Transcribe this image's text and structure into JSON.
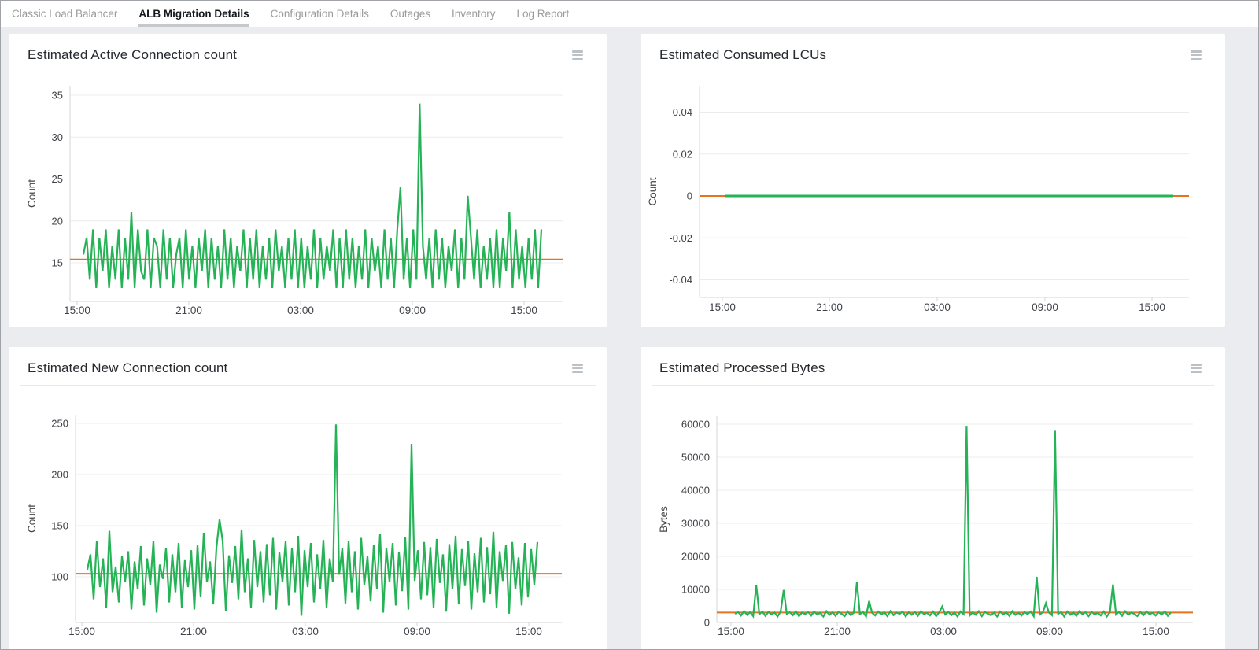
{
  "tab_bar": {
    "tabs": [
      {
        "label": "Classic Load Balancer",
        "active": false
      },
      {
        "label": "ALB Migration Details",
        "active": true
      },
      {
        "label": "Configuration Details",
        "active": false
      },
      {
        "label": "Outages",
        "active": false
      },
      {
        "label": "Inventory",
        "active": false
      },
      {
        "label": "Log Report",
        "active": false
      }
    ]
  },
  "icons": {
    "panel_menu": "hamburger-menu-icon"
  },
  "colors": {
    "series_green": "#26b357",
    "average_orange": "#e8731f",
    "grid": "#ececec",
    "axis": "#d5d5d5",
    "tick_text": "#3f4247",
    "page_background": "#eaecef",
    "tab_active_underline": "#c5c9cc"
  },
  "chart_data": [
    {
      "type": "line",
      "title": "Estimated Active Connection count",
      "ylabel": "Count",
      "xlabel": "",
      "grid": true,
      "legend": "none",
      "x_ticks": [
        "15:00",
        "21:00",
        "03:00",
        "09:00",
        "15:00"
      ],
      "y_ticks": [
        {
          "v": 15,
          "label": "15"
        },
        {
          "v": 20,
          "label": "20"
        },
        {
          "v": 25,
          "label": "25"
        },
        {
          "v": 30,
          "label": "30"
        },
        {
          "v": 35,
          "label": "35"
        }
      ],
      "ylim": [
        10.5,
        36
      ],
      "average_line": {
        "value": 15.4,
        "color": "#e8731f"
      },
      "series": [
        {
          "name": "Active Connection count",
          "color": "#26b357",
          "values": [
            16,
            18,
            13,
            19,
            12,
            18,
            14,
            19,
            12,
            17,
            13,
            19,
            12,
            18,
            13,
            21,
            12,
            19,
            14,
            13,
            19,
            12,
            18,
            17,
            12,
            19,
            13,
            18,
            12,
            16,
            18,
            12,
            19,
            13,
            17,
            12,
            18,
            14,
            19,
            12,
            18,
            13,
            17,
            12,
            19,
            13,
            18,
            12,
            17,
            14,
            19,
            12,
            18,
            13,
            19,
            12,
            17,
            13,
            18,
            12,
            19,
            14,
            17,
            12,
            18,
            13,
            19,
            12,
            18,
            12,
            17,
            13,
            19,
            12,
            18,
            13,
            17,
            14,
            19,
            12,
            18,
            12,
            19,
            13,
            18,
            12,
            17,
            13,
            19,
            12,
            18,
            14,
            17,
            12,
            19,
            13,
            18,
            12,
            19,
            24,
            13,
            18,
            12,
            19,
            13,
            34,
            17,
            13,
            18,
            12,
            19,
            13,
            18,
            12,
            17,
            14,
            19,
            12,
            18,
            13,
            23,
            18,
            13,
            19,
            12,
            17,
            13,
            18,
            12,
            19,
            12,
            18,
            14,
            21,
            12,
            19,
            13,
            17,
            12,
            18,
            13,
            19,
            12,
            19
          ]
        }
      ]
    },
    {
      "type": "line",
      "title": "Estimated Consumed LCUs",
      "ylabel": "Count",
      "xlabel": "",
      "grid": true,
      "legend": "none",
      "x_ticks": [
        "15:00",
        "21:00",
        "03:00",
        "09:00",
        "15:00"
      ],
      "y_ticks": [
        {
          "v": -0.04,
          "label": "-0.04"
        },
        {
          "v": -0.02,
          "label": "-0.02"
        },
        {
          "v": 0,
          "label": "0"
        },
        {
          "v": 0.02,
          "label": "0.02"
        },
        {
          "v": 0.04,
          "label": "0.04"
        }
      ],
      "ylim": [
        -0.05,
        0.05
      ],
      "average_line": {
        "value": 0,
        "color": "#e8731f"
      },
      "series": [
        {
          "name": "Consumed LCUs",
          "color": "#26b357",
          "values": [
            0,
            0,
            0,
            0,
            0,
            0,
            0,
            0,
            0,
            0,
            0,
            0
          ]
        }
      ]
    },
    {
      "type": "line",
      "title": "Estimated New Connection count",
      "ylabel": "Count",
      "xlabel": "",
      "grid": true,
      "legend": "none",
      "x_ticks": [
        "15:00",
        "21:00",
        "03:00",
        "09:00",
        "15:00"
      ],
      "y_ticks": [
        {
          "v": 100,
          "label": "100"
        },
        {
          "v": 150,
          "label": "150"
        },
        {
          "v": 200,
          "label": "200"
        },
        {
          "v": 250,
          "label": "250"
        }
      ],
      "ylim": [
        55,
        265
      ],
      "average_line": {
        "value": 103,
        "color": "#e8731f"
      },
      "series": [
        {
          "name": "New Connection count",
          "color": "#26b357",
          "values": [
            107,
            122,
            78,
            135,
            90,
            118,
            70,
            145,
            85,
            110,
            75,
            120,
            95,
            125,
            68,
            115,
            88,
            130,
            72,
            118,
            92,
            135,
            65,
            112,
            98,
            128,
            75,
            122,
            85,
            133,
            70,
            117,
            90,
            126,
            68,
            131,
            80,
            143,
            95,
            115,
            73,
            128,
            156,
            135,
            67,
            121,
            94,
            130,
            78,
            146,
            85,
            118,
            70,
            136,
            90,
            125,
            75,
            132,
            82,
            138,
            68,
            124,
            95,
            135,
            72,
            128,
            85,
            140,
            62,
            126,
            90,
            133,
            75,
            122,
            88,
            136,
            70,
            118,
            95,
            249,
            102,
            128,
            74,
            135,
            85,
            125,
            68,
            138,
            92,
            120,
            76,
            131,
            88,
            142,
            65,
            128,
            95,
            133,
            72,
            124,
            86,
            139,
            68,
            230,
            96,
            126,
            78,
            134,
            82,
            129,
            70,
            137,
            94,
            122,
            66,
            132,
            88,
            140,
            73,
            127,
            91,
            135,
            68,
            123,
            85,
            138,
            75,
            129,
            83,
            144,
            70,
            125,
            96,
            131,
            64,
            134,
            88,
            119,
            72,
            133,
            80,
            127,
            92,
            134
          ]
        }
      ]
    },
    {
      "type": "line",
      "title": "Estimated Processed Bytes",
      "ylabel": "Bytes",
      "xlabel": "",
      "grid": true,
      "legend": "none",
      "x_ticks": [
        "15:00",
        "21:00",
        "03:00",
        "09:00",
        "15:00"
      ],
      "y_ticks": [
        {
          "v": 0,
          "label": "0"
        },
        {
          "v": 10000,
          "label": "10000"
        },
        {
          "v": 20000,
          "label": "20000"
        },
        {
          "v": 30000,
          "label": "30000"
        },
        {
          "v": 40000,
          "label": "40000"
        },
        {
          "v": 50000,
          "label": "50000"
        },
        {
          "v": 60000,
          "label": "60000"
        }
      ],
      "ylim": [
        0,
        62500
      ],
      "average_line": {
        "value": 3000,
        "color": "#e8731f"
      },
      "series": [
        {
          "name": "Processed Bytes",
          "color": "#26b357",
          "values": [
            2600,
            3200,
            2100,
            3400,
            2300,
            3100,
            1900,
            11300,
            2500,
            3300,
            2000,
            3200,
            2400,
            3000,
            1800,
            3300,
            9800,
            2600,
            3100,
            2200,
            3400,
            1900,
            3000,
            2500,
            3200,
            2100,
            3300,
            2400,
            2900,
            1800,
            3400,
            2300,
            3100,
            2000,
            3200,
            2600,
            1900,
            3300,
            2200,
            3000,
            12300,
            2500,
            3200,
            1800,
            6500,
            2900,
            2100,
            3300,
            2400,
            3100,
            1900,
            3400,
            2200,
            3000,
            2600,
            3300,
            1800,
            3100,
            2300,
            3200,
            2000,
            3400,
            2500,
            2900,
            2100,
            3300,
            1900,
            3100,
            4800,
            2400,
            3200,
            2200,
            3000,
            1800,
            3300,
            2500,
            59500,
            2100,
            3100,
            2300,
            3400,
            1900,
            3200,
            2600,
            2200,
            3000,
            1800,
            3300,
            2400,
            3100,
            2000,
            3400,
            2300,
            2900,
            2100,
            3200,
            2500,
            3300,
            1900,
            13800,
            2400,
            3100,
            5800,
            3000,
            2200,
            58000,
            2600,
            3200,
            1800,
            3300,
            2300,
            3000,
            2000,
            3400,
            2500,
            3100,
            1900,
            3200,
            2400,
            2900,
            2100,
            3300,
            1800,
            3100,
            11500,
            2400,
            3200,
            2000,
            3400,
            2300,
            3000,
            2600,
            1900,
            3200,
            2200,
            3300,
            2500,
            2900,
            2100,
            3100,
            2400,
            3300,
            2000,
            3000
          ]
        }
      ]
    }
  ]
}
